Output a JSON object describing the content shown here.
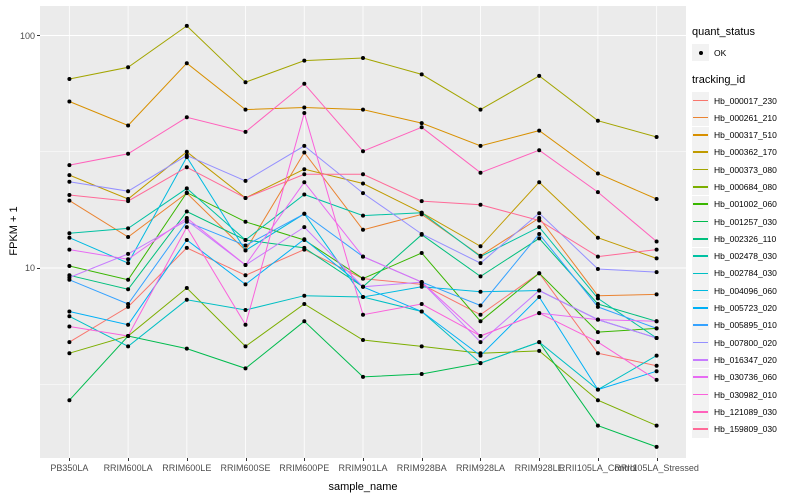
{
  "figure": {
    "y_axis": {
      "title": "FPKM + 1",
      "ticks": [
        "100",
        "10"
      ]
    },
    "x_axis": {
      "title": "sample_name"
    },
    "legend": {
      "quant_status_title": "quant_status",
      "quant_status_ok_label": "OK",
      "tracking_id_title": "tracking_id"
    }
  },
  "style": {
    "panel_bg": "#EBEBEB",
    "grid_color": "#FFFFFF",
    "tick_text_color": "#4D4D4D",
    "point_color": "#000000",
    "legend_key_bg": "#F2F2F2"
  },
  "chart_data": {
    "type": "line",
    "title": "",
    "xlabel": "sample_name",
    "ylabel": "FPKM + 1",
    "y_scale": "log10",
    "y_tick_values": [
      100,
      10
    ],
    "y_view_range": [
      1.5,
      136
    ],
    "grid": "white major and half-decade minor gridlines on gray panel",
    "legend_position": "right",
    "marker": "black point (quant_status OK)",
    "categories": [
      "PB350LA",
      "RRIM600LA",
      "RRIM600LE",
      "RRIM600SE",
      "RRIM600PE",
      "RRIM901LA",
      "RRIM928BA",
      "RRIM928LA",
      "RRIM928LE",
      "RRII105LA_Control",
      "RRII105LA_Stressed"
    ],
    "series": [
      {
        "name": "Hb_000017_230",
        "color": "#F8766D",
        "values": [
          4.8,
          6.8,
          12.2,
          9.3,
          12.0,
          9.0,
          8.5,
          6.3,
          9.5,
          4.3,
          3.8
        ]
      },
      {
        "name": "Hb_000261_210",
        "color": "#EA8331",
        "values": [
          19.5,
          13.6,
          21.0,
          11.9,
          31.4,
          14.6,
          17.0,
          11.3,
          16.4,
          7.6,
          7.7
        ]
      },
      {
        "name": "Hb_000317_510",
        "color": "#D89000",
        "values": [
          52,
          41,
          76,
          48,
          49,
          48,
          42,
          33.5,
          39,
          25.5,
          19.8
        ]
      },
      {
        "name": "Hb_000362_170",
        "color": "#C09B00",
        "values": [
          25.1,
          19.8,
          31.6,
          20,
          26.6,
          23.1,
          17.3,
          12.4,
          23.4,
          13.5,
          11.0
        ]
      },
      {
        "name": "Hb_000373_080",
        "color": "#A3A500",
        "values": [
          65,
          73,
          110,
          63,
          78,
          80,
          68,
          48,
          67,
          43,
          36.6
        ]
      },
      {
        "name": "Hb_000684_080",
        "color": "#7CAE00",
        "values": [
          4.3,
          5.1,
          8.2,
          4.6,
          7.0,
          4.9,
          4.6,
          4.3,
          4.4,
          2.7,
          2.1
        ]
      },
      {
        "name": "Hb_001002_060",
        "color": "#39B600",
        "values": [
          10.2,
          8.9,
          21.1,
          15.8,
          13.2,
          9.0,
          11.6,
          5.9,
          9.5,
          5.3,
          5.5
        ]
      },
      {
        "name": "Hb_001257_030",
        "color": "#00BB4E",
        "values": [
          2.7,
          5.1,
          4.5,
          3.7,
          5.9,
          3.4,
          3.5,
          3.9,
          4.8,
          2.1,
          1.7
        ]
      },
      {
        "name": "Hb_002326_110",
        "color": "#00BF7D",
        "values": [
          9.3,
          8.1,
          17.5,
          13.2,
          12.2,
          8.3,
          13.9,
          9.2,
          13.4,
          7.0,
          5.9
        ]
      },
      {
        "name": "Hb_002478_030",
        "color": "#00C1A3",
        "values": [
          14.1,
          14.8,
          22.0,
          13.2,
          20.7,
          16.8,
          17.3,
          11.2,
          15.0,
          7.4,
          5.0
        ]
      },
      {
        "name": "Hb_002784_030",
        "color": "#00BFC4",
        "values": [
          6.2,
          4.6,
          7.3,
          6.6,
          7.6,
          7.5,
          6.5,
          3.9,
          4.8,
          3.0,
          4.2
        ]
      },
      {
        "name": "Hb_004096_060",
        "color": "#00BAE0",
        "values": [
          13.5,
          10.5,
          30.0,
          11.9,
          17.1,
          7.5,
          8.3,
          7.9,
          8.0,
          6.0,
          5.0
        ]
      },
      {
        "name": "Hb_005723_020",
        "color": "#00B0F6",
        "values": [
          6.5,
          5.7,
          13.2,
          8.5,
          13.3,
          8.3,
          6.5,
          4.2,
          7.5,
          3.0,
          3.6
        ]
      },
      {
        "name": "Hb_005895_010",
        "color": "#35A2FF",
        "values": [
          8.9,
          7.0,
          15.8,
          12.5,
          17.1,
          11.2,
          8.7,
          6.9,
          14.0,
          6.8,
          5.5
        ]
      },
      {
        "name": "Hb_007800_020",
        "color": "#9590FF",
        "values": [
          23.5,
          21.4,
          30.5,
          23.7,
          33.5,
          21.0,
          14.0,
          10.5,
          17.2,
          9.9,
          9.6
        ]
      },
      {
        "name": "Hb_016347_020",
        "color": "#C77CFF",
        "values": [
          9.1,
          11.5,
          16.0,
          10.3,
          15.0,
          8.3,
          8.7,
          4.8,
          8.0,
          6.0,
          5.0
        ]
      },
      {
        "name": "Hb_030736_060",
        "color": "#E76BF3",
        "values": [
          12.0,
          10.9,
          16.4,
          10.3,
          23.4,
          11.2,
          8.7,
          5.1,
          6.4,
          6.0,
          5.9
        ]
      },
      {
        "name": "Hb_030982_010",
        "color": "#FA62DB",
        "values": [
          5.6,
          5.1,
          15.0,
          5.7,
          46.4,
          6.3,
          7.0,
          5.1,
          6.4,
          4.8,
          3.3
        ]
      },
      {
        "name": "Hb_121089_030",
        "color": "#FF62BC",
        "values": [
          27.7,
          31.0,
          44.5,
          38.5,
          62.0,
          31.8,
          40.3,
          25.7,
          32.1,
          21.2,
          13.0
        ]
      },
      {
        "name": "Hb_159809_030",
        "color": "#FF6A98",
        "values": [
          20.6,
          19.4,
          27.1,
          20.0,
          25.3,
          25.3,
          19.4,
          18.7,
          16.0,
          11.2,
          12.0
        ]
      }
    ]
  }
}
